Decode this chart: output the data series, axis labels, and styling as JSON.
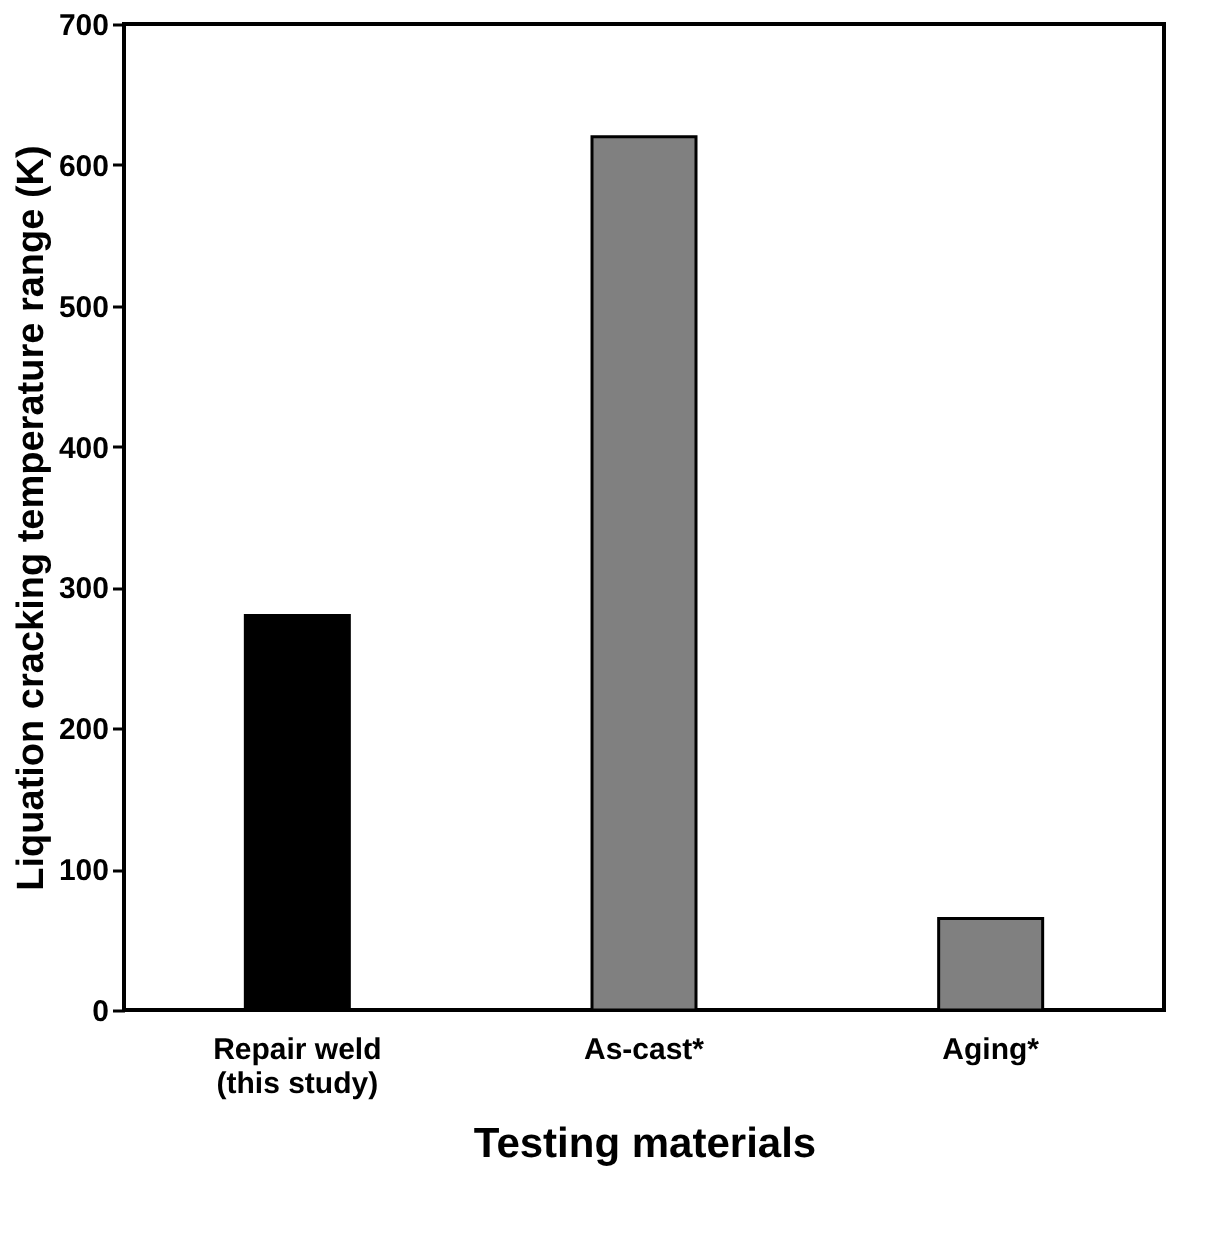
{
  "chart_data": {
    "type": "bar",
    "xlabel": "Testing materials",
    "ylabel": "Liquation cracking temperature range (K)",
    "categories": [
      "Repair weld\n(this study)",
      "As-cast*",
      "Aging*"
    ],
    "values": [
      280,
      620,
      65
    ],
    "colors": [
      "#000000",
      "#808080",
      "#808080"
    ],
    "ylim": [
      0,
      700
    ],
    "yticks": [
      0,
      100,
      200,
      300,
      400,
      500,
      600,
      700
    ],
    "grid": false
  }
}
